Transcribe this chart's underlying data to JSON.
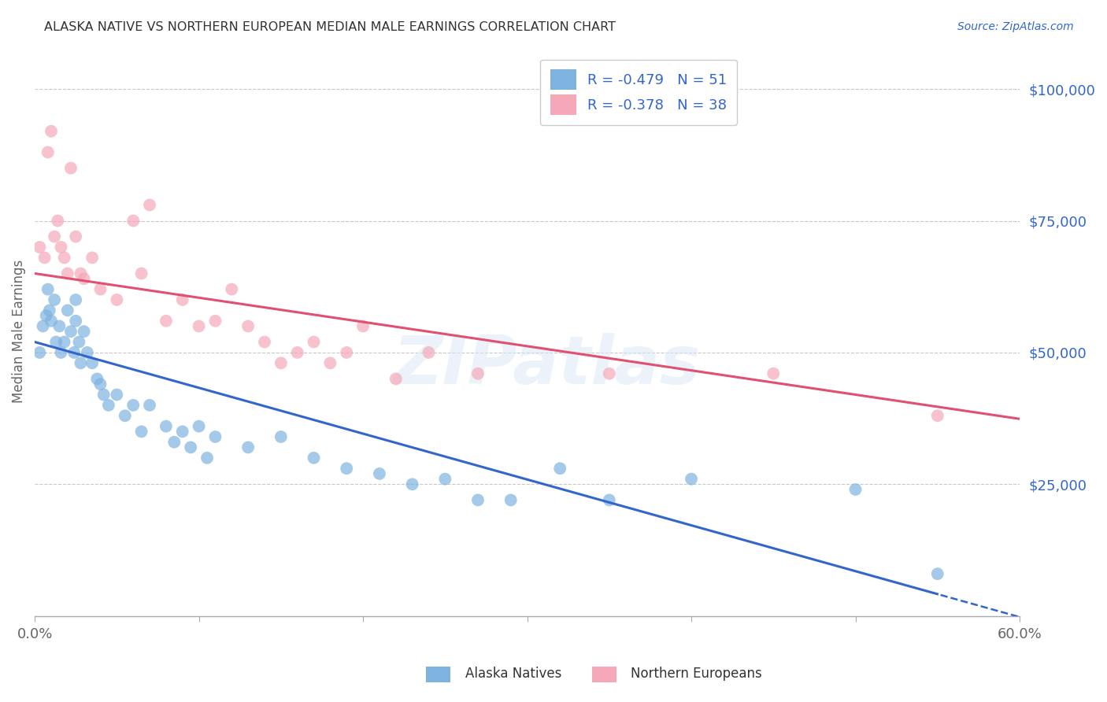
{
  "title": "ALASKA NATIVE VS NORTHERN EUROPEAN MEDIAN MALE EARNINGS CORRELATION CHART",
  "source": "Source: ZipAtlas.com",
  "ylabel": "Median Male Earnings",
  "yticks": [
    0,
    25000,
    50000,
    75000,
    100000
  ],
  "ytick_labels": [
    "",
    "$25,000",
    "$50,000",
    "$75,000",
    "$100,000"
  ],
  "xlim": [
    0.0,
    0.6
  ],
  "ylim": [
    0,
    108000
  ],
  "legend_label1": "R = -0.479   N = 51",
  "legend_label2": "R = -0.378   N = 38",
  "legend_x_label": "Alaska Natives",
  "legend_x_label2": "Northern Europeans",
  "blue_color": "#7EB3E0",
  "pink_color": "#F4A8B8",
  "blue_line_color": "#3366CC",
  "pink_line_color": "#E05070",
  "watermark": "ZIPatlas",
  "background_color": "#FFFFFF",
  "grid_color": "#C8C8C8",
  "title_color": "#333333",
  "source_color": "#3366CC",
  "ytick_color": "#3366CC",
  "xtick_color": "#666666",
  "ylabel_color": "#666666",
  "blue_intercept": 52000,
  "blue_slope": -87000,
  "pink_intercept": 65000,
  "pink_slope": -46000,
  "alaska_x": [
    0.003,
    0.005,
    0.007,
    0.008,
    0.009,
    0.01,
    0.012,
    0.013,
    0.015,
    0.016,
    0.018,
    0.02,
    0.022,
    0.024,
    0.025,
    0.025,
    0.027,
    0.028,
    0.03,
    0.032,
    0.035,
    0.038,
    0.04,
    0.042,
    0.045,
    0.05,
    0.055,
    0.06,
    0.065,
    0.07,
    0.08,
    0.085,
    0.09,
    0.095,
    0.1,
    0.105,
    0.11,
    0.13,
    0.15,
    0.17,
    0.19,
    0.21,
    0.23,
    0.25,
    0.27,
    0.29,
    0.32,
    0.35,
    0.4,
    0.5,
    0.55
  ],
  "alaska_y": [
    50000,
    55000,
    57000,
    62000,
    58000,
    56000,
    60000,
    52000,
    55000,
    50000,
    52000,
    58000,
    54000,
    50000,
    60000,
    56000,
    52000,
    48000,
    54000,
    50000,
    48000,
    45000,
    44000,
    42000,
    40000,
    42000,
    38000,
    40000,
    35000,
    40000,
    36000,
    33000,
    35000,
    32000,
    36000,
    30000,
    34000,
    32000,
    34000,
    30000,
    28000,
    27000,
    25000,
    26000,
    22000,
    22000,
    28000,
    22000,
    26000,
    24000,
    8000
  ],
  "northern_x": [
    0.003,
    0.006,
    0.008,
    0.01,
    0.012,
    0.014,
    0.016,
    0.018,
    0.02,
    0.022,
    0.025,
    0.028,
    0.03,
    0.035,
    0.04,
    0.05,
    0.06,
    0.065,
    0.07,
    0.08,
    0.09,
    0.1,
    0.11,
    0.12,
    0.13,
    0.14,
    0.15,
    0.16,
    0.17,
    0.18,
    0.19,
    0.2,
    0.22,
    0.24,
    0.27,
    0.35,
    0.45,
    0.55
  ],
  "northern_y": [
    70000,
    68000,
    88000,
    92000,
    72000,
    75000,
    70000,
    68000,
    65000,
    85000,
    72000,
    65000,
    64000,
    68000,
    62000,
    60000,
    75000,
    65000,
    78000,
    56000,
    60000,
    55000,
    56000,
    62000,
    55000,
    52000,
    48000,
    50000,
    52000,
    48000,
    50000,
    55000,
    45000,
    50000,
    46000,
    46000,
    46000,
    38000
  ]
}
